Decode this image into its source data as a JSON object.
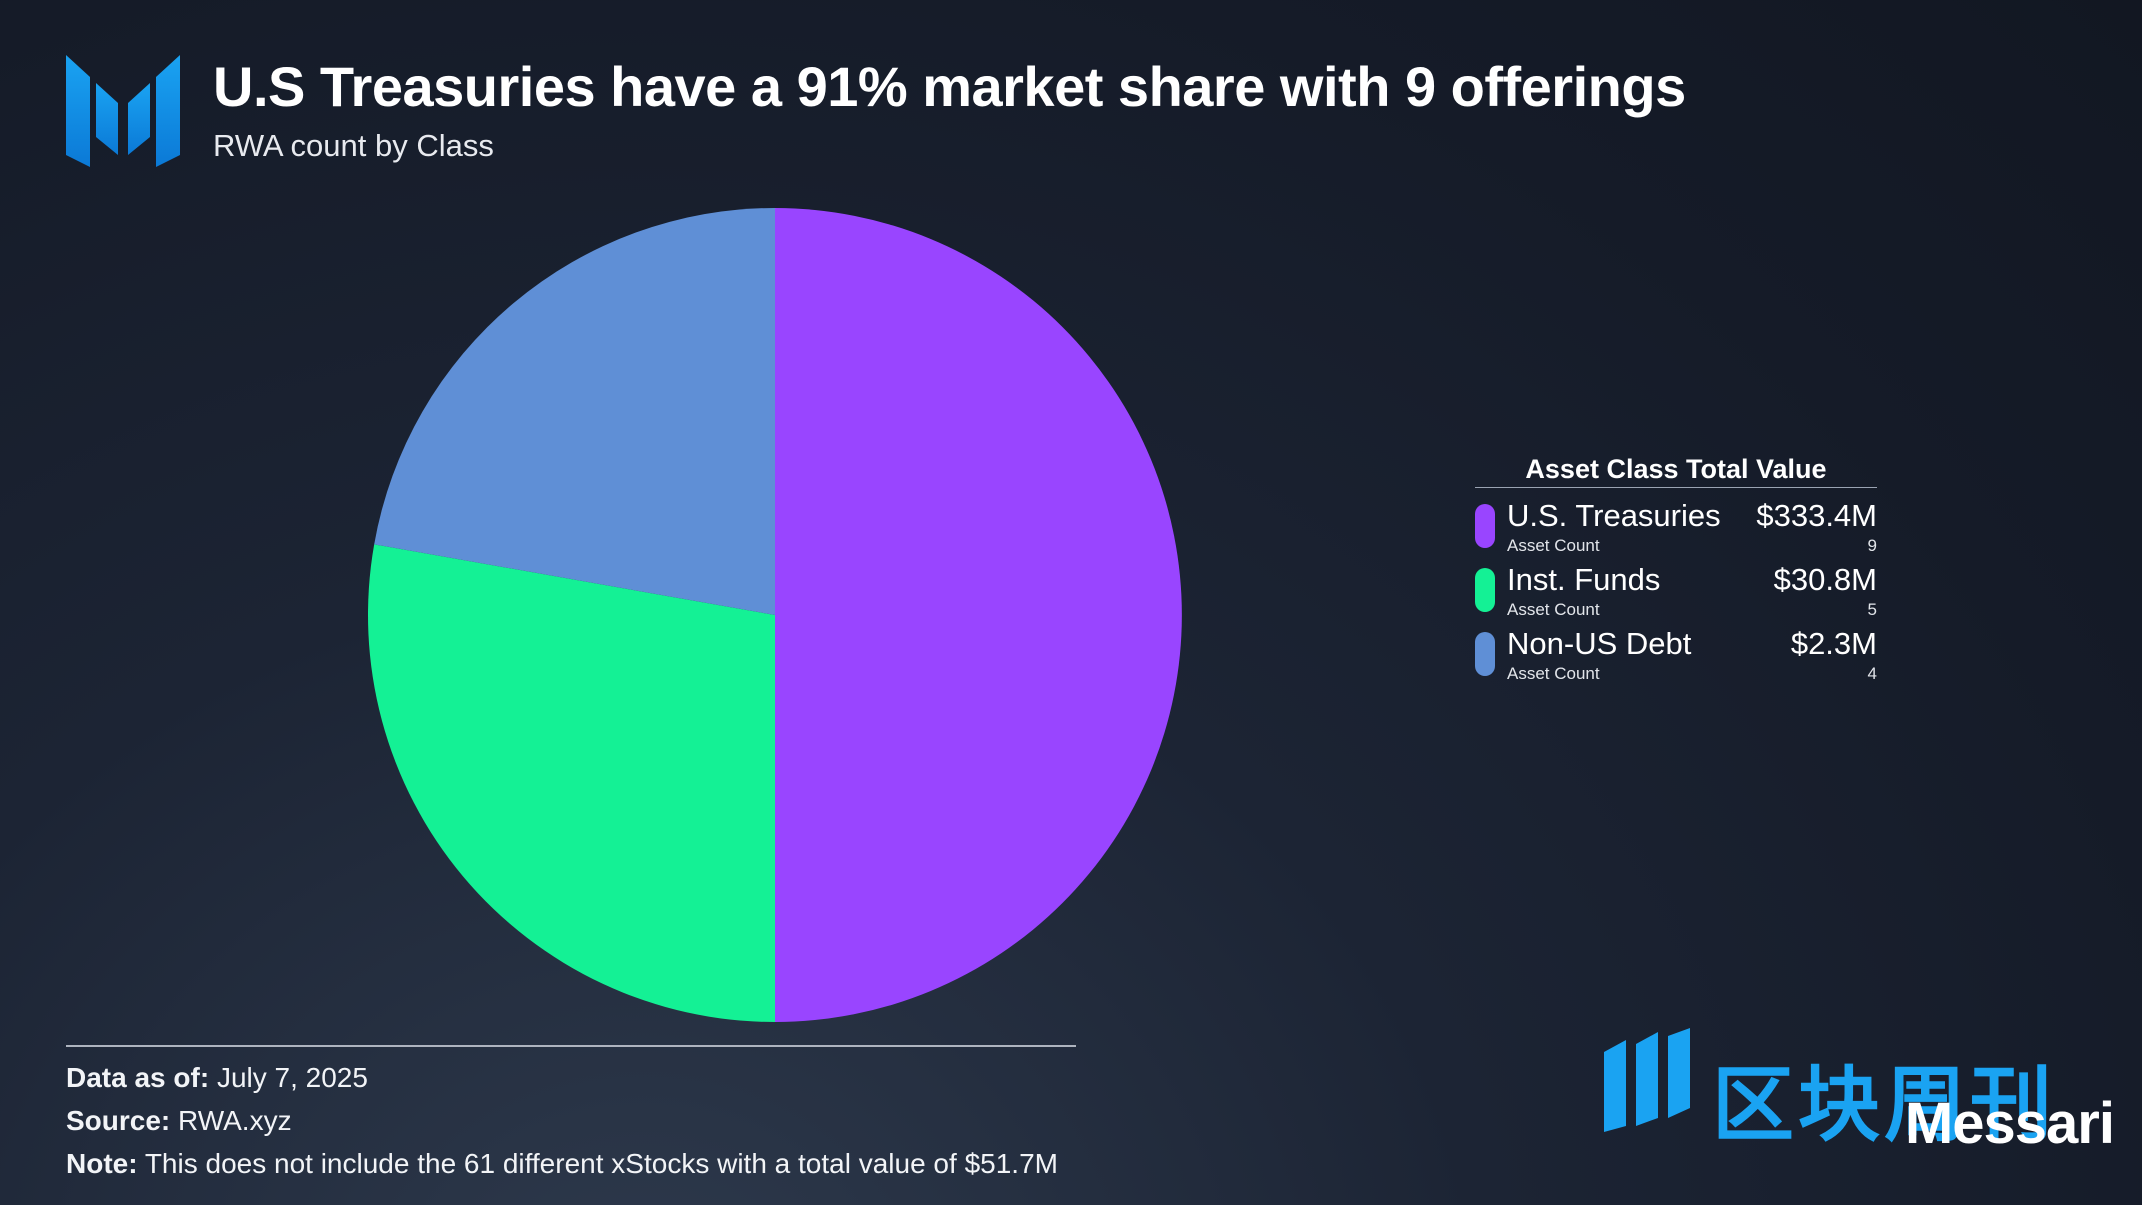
{
  "header": {
    "logo_icon": "messari-m-logo-icon",
    "title": "U.S Treasuries have a 91% market share with 9 offerings",
    "subtitle": "RWA count by Class"
  },
  "chart_data": {
    "type": "pie",
    "title": "U.S Treasuries have a 91% market share with 9 offerings",
    "subtitle": "RWA count by Class",
    "categories": [
      "U.S. Treasuries",
      "Inst. Funds",
      "Non-US Debt"
    ],
    "values": [
      9,
      5,
      4
    ],
    "colors": [
      "#9945ff",
      "#14f195",
      "#5f8fd6"
    ],
    "start_angle_deg": 0,
    "direction": "clockwise",
    "legend_position": "right"
  },
  "legend": {
    "title": "Asset Class Total Value",
    "items": [
      {
        "name": "U.S. Treasuries",
        "sub_label": "Asset Count",
        "value": "$333.4M",
        "count": "9",
        "color": "#9945ff"
      },
      {
        "name": "Inst. Funds",
        "sub_label": "Asset Count",
        "value": "$30.8M",
        "count": "5",
        "color": "#14f195"
      },
      {
        "name": "Non-US Debt",
        "sub_label": "Asset Count",
        "value": "$2.3M",
        "count": "4",
        "color": "#5f8fd6"
      }
    ]
  },
  "footer": {
    "data_label": "Data as of:",
    "data_value": "July 7, 2025",
    "source_label": "Source:",
    "source_value": "RWA.xyz",
    "note_label": "Note:",
    "note_value": "This does not include the 61 different xStocks with a total value of $51.7M"
  },
  "brand": {
    "name": "Messari",
    "watermark_text": "区块周刊",
    "watermark_icon": "blockweekly-logo-icon",
    "accent_color": "#1aa3f2"
  }
}
